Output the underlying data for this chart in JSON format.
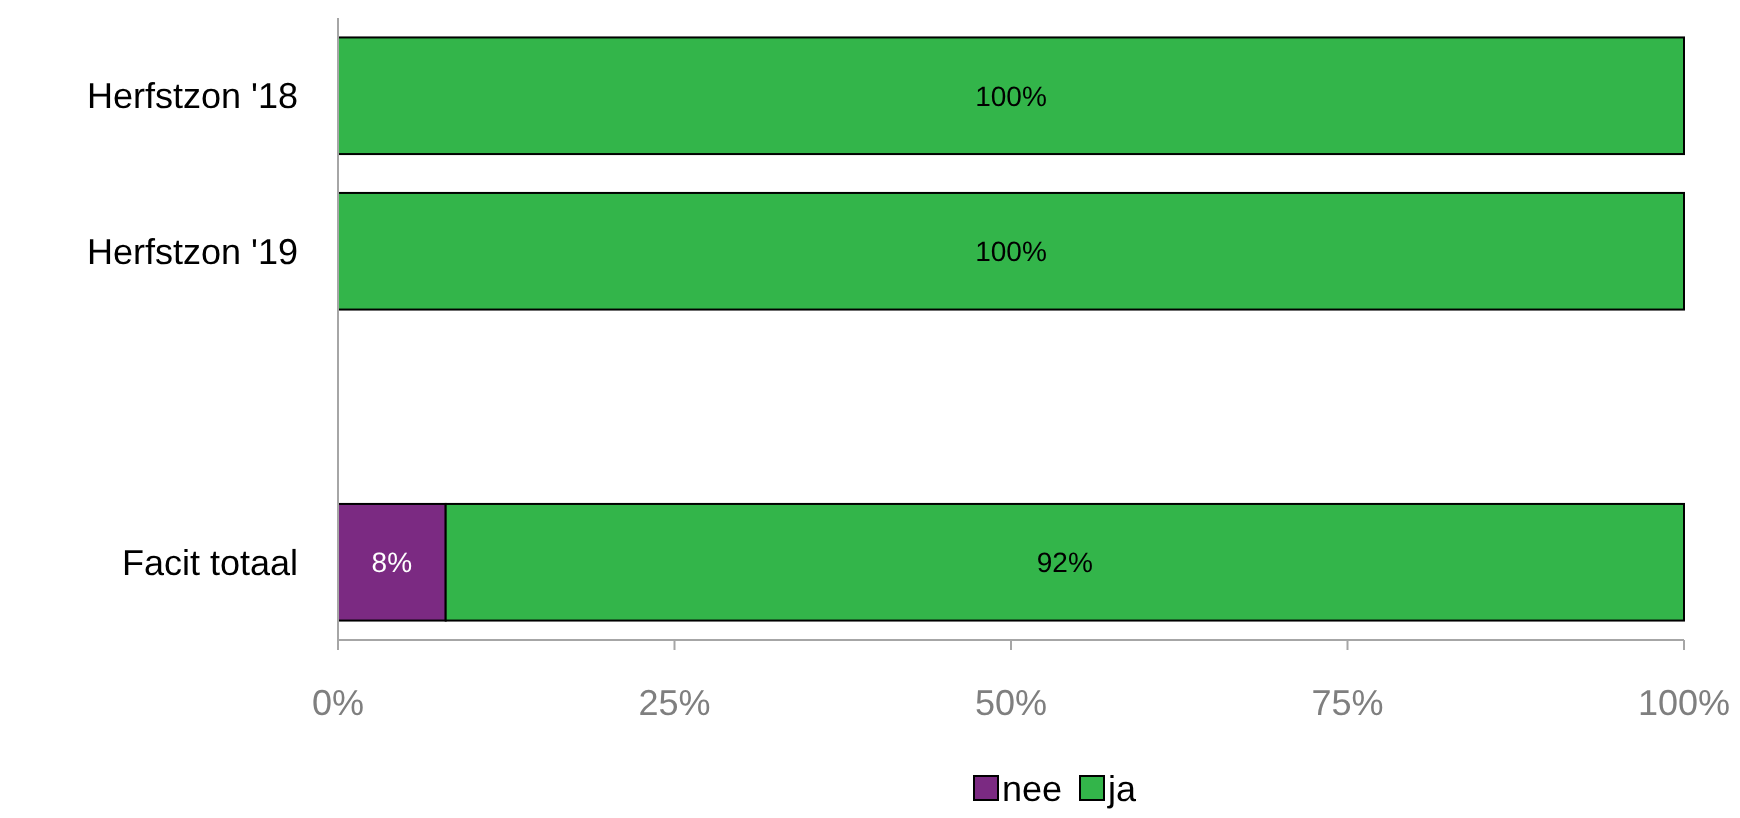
{
  "chart_data": {
    "type": "bar",
    "orientation": "horizontal",
    "stacked": true,
    "categories": [
      "Herfstzon '18",
      "Herfstzon '19",
      null,
      "Facit totaal"
    ],
    "series": [
      {
        "name": "nee",
        "color": "#7b2a82",
        "values": [
          0,
          0,
          null,
          8
        ],
        "value_labels": [
          null,
          null,
          null,
          "8%"
        ]
      },
      {
        "name": "ja",
        "color": "#33b54a",
        "values": [
          100,
          100,
          null,
          92
        ],
        "value_labels": [
          "100%",
          "100%",
          null,
          "92%"
        ]
      }
    ],
    "xlim": [
      0,
      100
    ],
    "xticks": [
      {
        "value": 0,
        "label": "0%"
      },
      {
        "value": 25,
        "label": "25%"
      },
      {
        "value": 50,
        "label": "50%"
      },
      {
        "value": 75,
        "label": "75%"
      },
      {
        "value": 100,
        "label": "100%"
      }
    ],
    "grid": false,
    "legend": "bottom"
  }
}
